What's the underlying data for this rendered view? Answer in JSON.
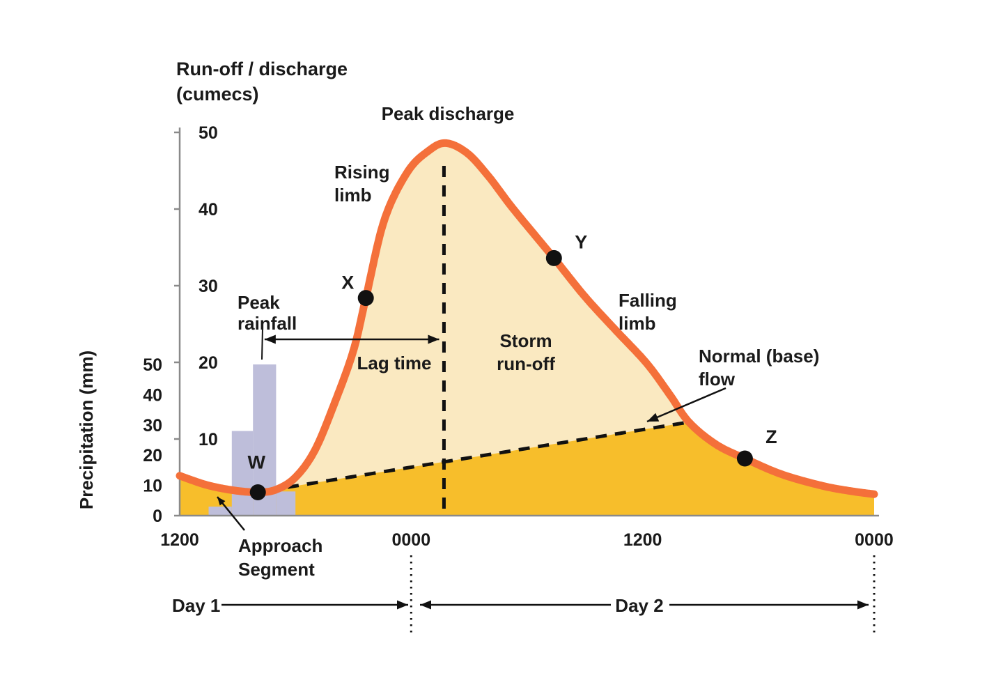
{
  "title": {
    "line1": "Run-off / discharge",
    "line2": "(cumecs)"
  },
  "labels": {
    "peak_discharge": "Peak discharge",
    "rising_limb": [
      "Rising",
      "limb"
    ],
    "falling_limb": [
      "Falling",
      "limb"
    ],
    "storm_runoff": [
      "Storm",
      "run-off"
    ],
    "normal_base_flow": [
      "Normal (base)",
      "flow"
    ],
    "lag_time": "Lag time",
    "peak_rainfall": [
      "Peak",
      "rainfall"
    ],
    "approach_segment": [
      "Approach",
      "Segment"
    ],
    "day1": "Day 1",
    "day2": "Day 2"
  },
  "colors": {
    "curve": "#F4703A",
    "storm_fill": "#FAE9C1",
    "base_fill": "#F7BE2B",
    "rain_bar": "#BEBEDA",
    "text": "#1A1A1A",
    "axis": "#8A8A8A",
    "ink": "#111111"
  },
  "chart_data": {
    "type": "area",
    "x_ticks": [
      {
        "hour": 12,
        "label": "1200"
      },
      {
        "hour": 24,
        "label": "0000"
      },
      {
        "hour": 36,
        "label": "1200"
      },
      {
        "hour": 48,
        "label": "0000"
      }
    ],
    "x_range_hours": [
      12,
      48
    ],
    "discharge_axis": {
      "label": "Run-off / discharge (cumecs)",
      "range": [
        0,
        50
      ],
      "ticks": [
        10,
        20,
        30,
        40,
        50
      ]
    },
    "precip_axis": {
      "label": "Precipitation (mm)",
      "range": [
        0,
        50
      ],
      "ticks": [
        0,
        10,
        20,
        30,
        40,
        50
      ]
    },
    "hydrograph_curve_t_cumecs": [
      [
        12,
        5.2
      ],
      [
        13.4,
        4.0
      ],
      [
        14.8,
        3.3
      ],
      [
        16.05,
        3.05
      ],
      [
        17,
        3.4
      ],
      [
        18,
        5
      ],
      [
        19,
        8.5
      ],
      [
        20,
        14.5
      ],
      [
        21,
        21.5
      ],
      [
        21.65,
        28.4
      ],
      [
        22.6,
        38.5
      ],
      [
        23.8,
        44.8
      ],
      [
        24.9,
        47.6
      ],
      [
        25.8,
        48.6
      ],
      [
        26.9,
        47.3
      ],
      [
        28,
        44.3
      ],
      [
        29.3,
        40
      ],
      [
        31.4,
        33.6
      ],
      [
        33,
        28.6
      ],
      [
        34.6,
        24.2
      ],
      [
        36.2,
        19.9
      ],
      [
        37.4,
        15.8
      ],
      [
        38.4,
        12.2
      ],
      [
        39.8,
        9.3
      ],
      [
        41.3,
        7.45
      ],
      [
        43.2,
        5.4
      ],
      [
        45.3,
        3.9
      ],
      [
        46.8,
        3.2
      ],
      [
        48,
        2.8
      ]
    ],
    "baseflow_line_t_cumecs": {
      "from": [
        16.6,
        3.3
      ],
      "to": [
        38.4,
        12.2
      ]
    },
    "rainfall_bars_t_mm": [
      {
        "t0": 13.5,
        "t1": 14.7,
        "mm": 3
      },
      {
        "t0": 14.7,
        "t1": 15.8,
        "mm": 28
      },
      {
        "t0": 15.8,
        "t1": 17.0,
        "mm": 50
      },
      {
        "t0": 17.0,
        "t1": 18.0,
        "mm": 8
      }
    ],
    "peak_discharge_hour": 25.8,
    "lag_time_arrow": {
      "from_hour": 16.4,
      "to_hour": 25.45,
      "at_cumecs": 23
    },
    "marked_points": [
      {
        "label": "W",
        "t": 16.05,
        "cumecs": 3.05
      },
      {
        "label": "X",
        "t": 21.65,
        "cumecs": 28.4
      },
      {
        "label": "Y",
        "t": 31.4,
        "cumecs": 33.6
      },
      {
        "label": "Z",
        "t": 41.3,
        "cumecs": 7.45
      }
    ]
  }
}
